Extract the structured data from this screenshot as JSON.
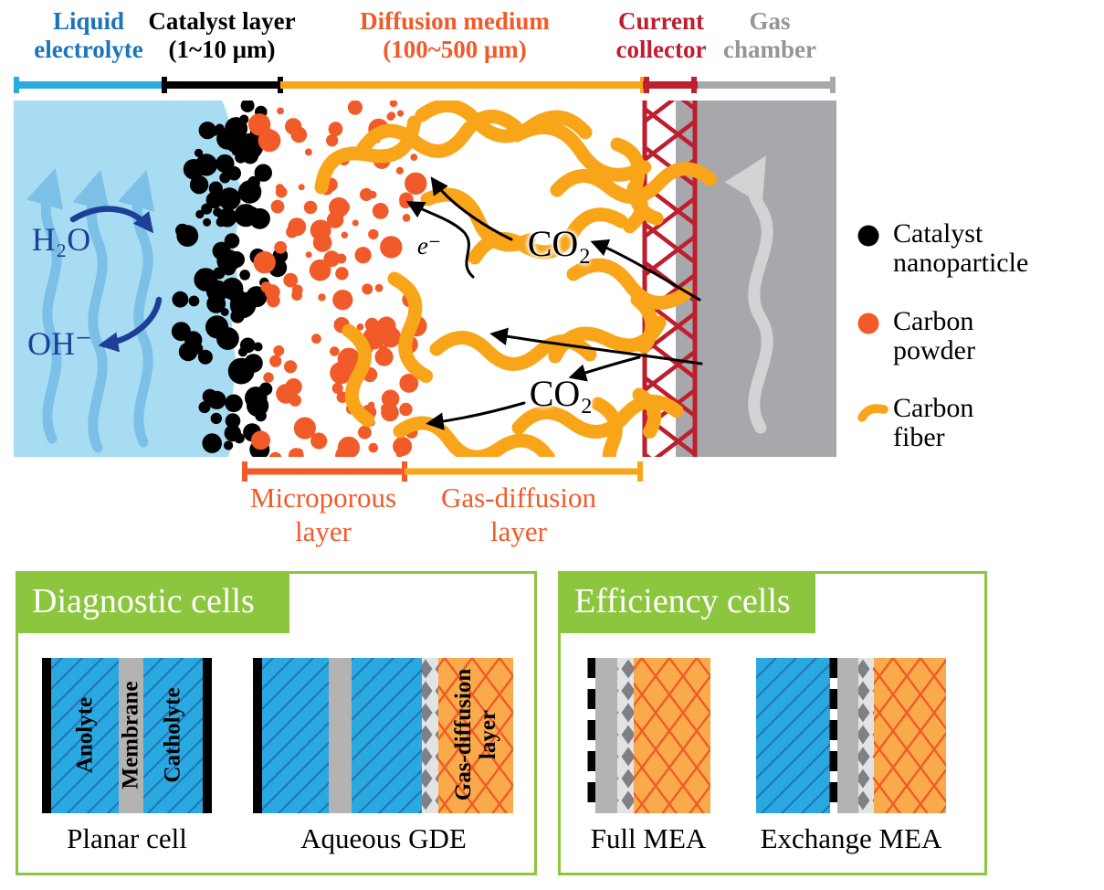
{
  "colors": {
    "electrolyte_bg": "#A8DCF2",
    "wave_blue": "#7CC0E8",
    "navy": "#1E3F97",
    "bracket_blue": "#29ABE2",
    "label_blue": "#1B75BC",
    "orange_red": "#F15A29",
    "fiber_orange": "#F9A51A",
    "crimson": "#BE1E2D",
    "gray_label": "#939598",
    "chamber_gray": "#A6A8AB",
    "arrow_gray": "#D2D3D4",
    "green": "#8CC63F",
    "cell_blue": "#29A9E0",
    "cell_blue_line": "#2272B8",
    "membrane_gray": "#B3B3B3",
    "diamond_gray": "#7E8083",
    "diamond_bg": "#E2E3E4",
    "gdl_orange": "#F9AA4B",
    "black": "#000000"
  },
  "layers": {
    "liquid_electrolyte": {
      "line1": "Liquid",
      "line2": "electrolyte"
    },
    "catalyst_layer": {
      "line1": "Catalyst layer",
      "line2": "(1~10 μm)"
    },
    "diffusion_medium": {
      "line1": "Diffusion medium",
      "line2": "(100~500 μm)"
    },
    "current_collector": {
      "line1": "Current",
      "line2": "collector"
    },
    "gas_chamber": {
      "line1": "Gas",
      "line2": "chamber"
    }
  },
  "annotations": {
    "h2o": "H₂O",
    "oh": "OH⁻",
    "electron": "e⁻",
    "co2_top": "CO₂",
    "co2_bottom": "CO₂"
  },
  "sublayers": {
    "microporous": {
      "line1": "Microporous",
      "line2": "layer"
    },
    "gas_diffusion": {
      "line1": "Gas-diffusion",
      "line2": "layer"
    }
  },
  "legend": {
    "items": [
      {
        "icon": "catalyst-nanoparticle",
        "line1": "Catalyst",
        "line2": "nanoparticle"
      },
      {
        "icon": "carbon-powder",
        "line1": "Carbon",
        "line2": "powder"
      },
      {
        "icon": "carbon-fiber",
        "line1": "Carbon",
        "line2": "fiber"
      }
    ]
  },
  "cells": {
    "diagnostic": {
      "title": "Diagnostic cells",
      "planar": {
        "name": "Planar cell",
        "anolyte": "Anolyte",
        "membrane": "Membrane",
        "catholyte": "Catholyte"
      },
      "aqueous": {
        "name": "Aqueous GDE",
        "gdl_line1": "Gas-diffusion",
        "gdl_line2": "layer"
      }
    },
    "efficiency": {
      "title": "Efficiency cells",
      "full": {
        "name": "Full MEA"
      },
      "exchange": {
        "name": "Exchange MEA"
      }
    }
  }
}
